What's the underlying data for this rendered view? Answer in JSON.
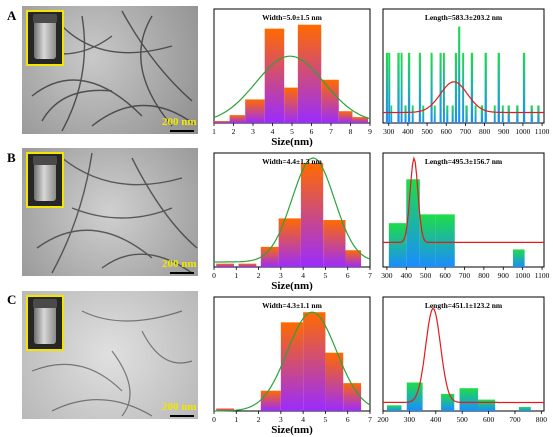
{
  "panel_labels": [
    "A",
    "B",
    "C"
  ],
  "scale_bar_label": "200 nm",
  "chart_data": [
    {
      "type": "bar",
      "id": "A-width",
      "title": "Width=5.0±1.5 nm",
      "xlabel": "Size(nm)",
      "xlim": [
        1,
        9
      ],
      "ylim": [
        0,
        58
      ],
      "xticks": [
        1,
        2,
        3,
        4,
        5,
        6,
        7,
        8,
        9
      ],
      "bins": [
        [
          1.0,
          1.8,
          1
        ],
        [
          1.8,
          2.6,
          4
        ],
        [
          2.6,
          3.6,
          12
        ],
        [
          3.6,
          4.6,
          48
        ],
        [
          4.6,
          5.3,
          18
        ],
        [
          5.3,
          6.5,
          50
        ],
        [
          6.5,
          7.4,
          22
        ],
        [
          7.4,
          8.1,
          6
        ],
        [
          8.1,
          8.9,
          3
        ]
      ],
      "fit": {
        "color": "#2aa33a",
        "mean": 4.9,
        "sigma": 1.75,
        "amp": 34,
        "base": 0
      }
    },
    {
      "type": "bar",
      "id": "A-length",
      "title": "Length=583.3±203.2 nm",
      "xlabel": "",
      "xlim": [
        270,
        1110
      ],
      "ylim": [
        0,
        13
      ],
      "xticks": [
        300,
        400,
        500,
        600,
        700,
        800,
        900,
        1000,
        1100
      ],
      "bins": [
        [
          285,
          297,
          8
        ],
        [
          298,
          308,
          8
        ],
        [
          310,
          318,
          2
        ],
        [
          345,
          357,
          8
        ],
        [
          362,
          372,
          8
        ],
        [
          382,
          393,
          2
        ],
        [
          400,
          412,
          8
        ],
        [
          420,
          430,
          2
        ],
        [
          457,
          468,
          8
        ],
        [
          475,
          485,
          2
        ],
        [
          518,
          529,
          8
        ],
        [
          535,
          545,
          2
        ],
        [
          565,
          576,
          8
        ],
        [
          583,
          593,
          8
        ],
        [
          600,
          611,
          2
        ],
        [
          628,
          639,
          2
        ],
        [
          645,
          656,
          8
        ],
        [
          662,
          673,
          11
        ],
        [
          683,
          693,
          8
        ],
        [
          700,
          712,
          2
        ],
        [
          728,
          740,
          8
        ],
        [
          748,
          758,
          2
        ],
        [
          780,
          792,
          2
        ],
        [
          800,
          812,
          8
        ],
        [
          848,
          858,
          2
        ],
        [
          868,
          880,
          8
        ],
        [
          890,
          900,
          2
        ],
        [
          920,
          932,
          2
        ],
        [
          965,
          977,
          2
        ],
        [
          1000,
          1012,
          8
        ],
        [
          1040,
          1052,
          2
        ],
        [
          1075,
          1087,
          2
        ]
      ],
      "fit": {
        "color": "#e31b1b",
        "mean": 640,
        "sigma": 70,
        "amp": 3.5,
        "base": 1.2
      }
    },
    {
      "type": "bar",
      "id": "B-width",
      "title": "Width=4.4±1.3 nm",
      "xlabel": "Size(nm)",
      "xlim": [
        0,
        7
      ],
      "ylim": [
        0,
        68
      ],
      "xticks": [
        0,
        1,
        2,
        3,
        4,
        5,
        6,
        7
      ],
      "bins": [
        [
          0.1,
          0.9,
          2
        ],
        [
          1.1,
          1.9,
          2
        ],
        [
          2.1,
          2.9,
          12
        ],
        [
          2.9,
          3.9,
          29
        ],
        [
          3.9,
          4.9,
          62
        ],
        [
          4.9,
          5.9,
          28
        ],
        [
          5.9,
          6.6,
          10
        ]
      ],
      "fit": {
        "color": "#2aa33a",
        "mean": 4.45,
        "sigma": 0.95,
        "amp": 62,
        "base": 3
      }
    },
    {
      "type": "bar",
      "id": "B-length",
      "title": "Length=495.3±156.7 nm",
      "xlabel": "",
      "xlim": [
        280,
        1110
      ],
      "ylim": [
        0,
        13
      ],
      "xticks": [
        300,
        400,
        500,
        600,
        700,
        800,
        900,
        1000,
        1100
      ],
      "bins": [
        [
          310,
          400,
          5
        ],
        [
          400,
          470,
          10
        ],
        [
          470,
          550,
          6
        ],
        [
          550,
          650,
          6
        ],
        [
          950,
          1010,
          2
        ]
      ],
      "fit": {
        "color": "#e31b1b",
        "mean": 440,
        "sigma": 20,
        "amp": 9.6,
        "base": 2.8
      }
    },
    {
      "type": "bar",
      "id": "C-width",
      "title": "Width=4.3±1.1 nm",
      "xlabel": "Size(nm)",
      "xlim": [
        0,
        7
      ],
      "ylim": [
        0,
        45
      ],
      "xticks": [
        0,
        1,
        2,
        3,
        4,
        5,
        6,
        7
      ],
      "bins": [
        [
          0.1,
          0.9,
          1
        ],
        [
          2.1,
          3.0,
          8
        ],
        [
          3.0,
          4.0,
          35
        ],
        [
          4.0,
          5.0,
          39
        ],
        [
          5.0,
          5.8,
          23
        ],
        [
          5.8,
          6.6,
          11
        ]
      ],
      "fit": {
        "color": "#2aa33a",
        "mean": 4.4,
        "sigma": 1.1,
        "amp": 39,
        "base": 0
      }
    },
    {
      "type": "bar",
      "id": "C-length",
      "title": "Length=451.1±123.2 nm",
      "xlabel": "",
      "xlim": [
        200,
        810
      ],
      "ylim": [
        0,
        20
      ],
      "xticks": [
        200,
        300,
        400,
        500,
        600,
        700,
        800
      ],
      "bins": [
        [
          215,
          270,
          1
        ],
        [
          290,
          350,
          5
        ],
        [
          420,
          470,
          3
        ],
        [
          490,
          560,
          4
        ],
        [
          560,
          625,
          2
        ],
        [
          715,
          760,
          0.7
        ]
      ],
      "fit": {
        "color": "#e31b1b",
        "mean": 390,
        "sigma": 28,
        "amp": 16.5,
        "base": 1.5
      }
    }
  ]
}
